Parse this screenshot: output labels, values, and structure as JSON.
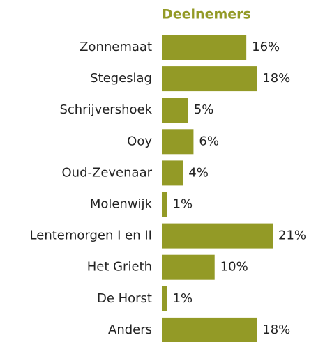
{
  "chart_data": {
    "type": "bar",
    "orientation": "horizontal",
    "title": "Deelnemers",
    "categories": [
      "Zonnemaat",
      "Stegeslag",
      "Schrijvershoek",
      "Ooy",
      "Oud-Zevenaar",
      "Molenwijk",
      "Lentemorgen I en II",
      "Het Grieth",
      "De Horst",
      "Anders"
    ],
    "values": [
      16,
      18,
      5,
      6,
      4,
      1,
      21,
      10,
      1,
      18
    ],
    "value_labels": [
      "16%",
      "18%",
      "5%",
      "6%",
      "4%",
      "1%",
      "21%",
      "10%",
      "1%",
      "18%"
    ],
    "color": "#939a26"
  }
}
